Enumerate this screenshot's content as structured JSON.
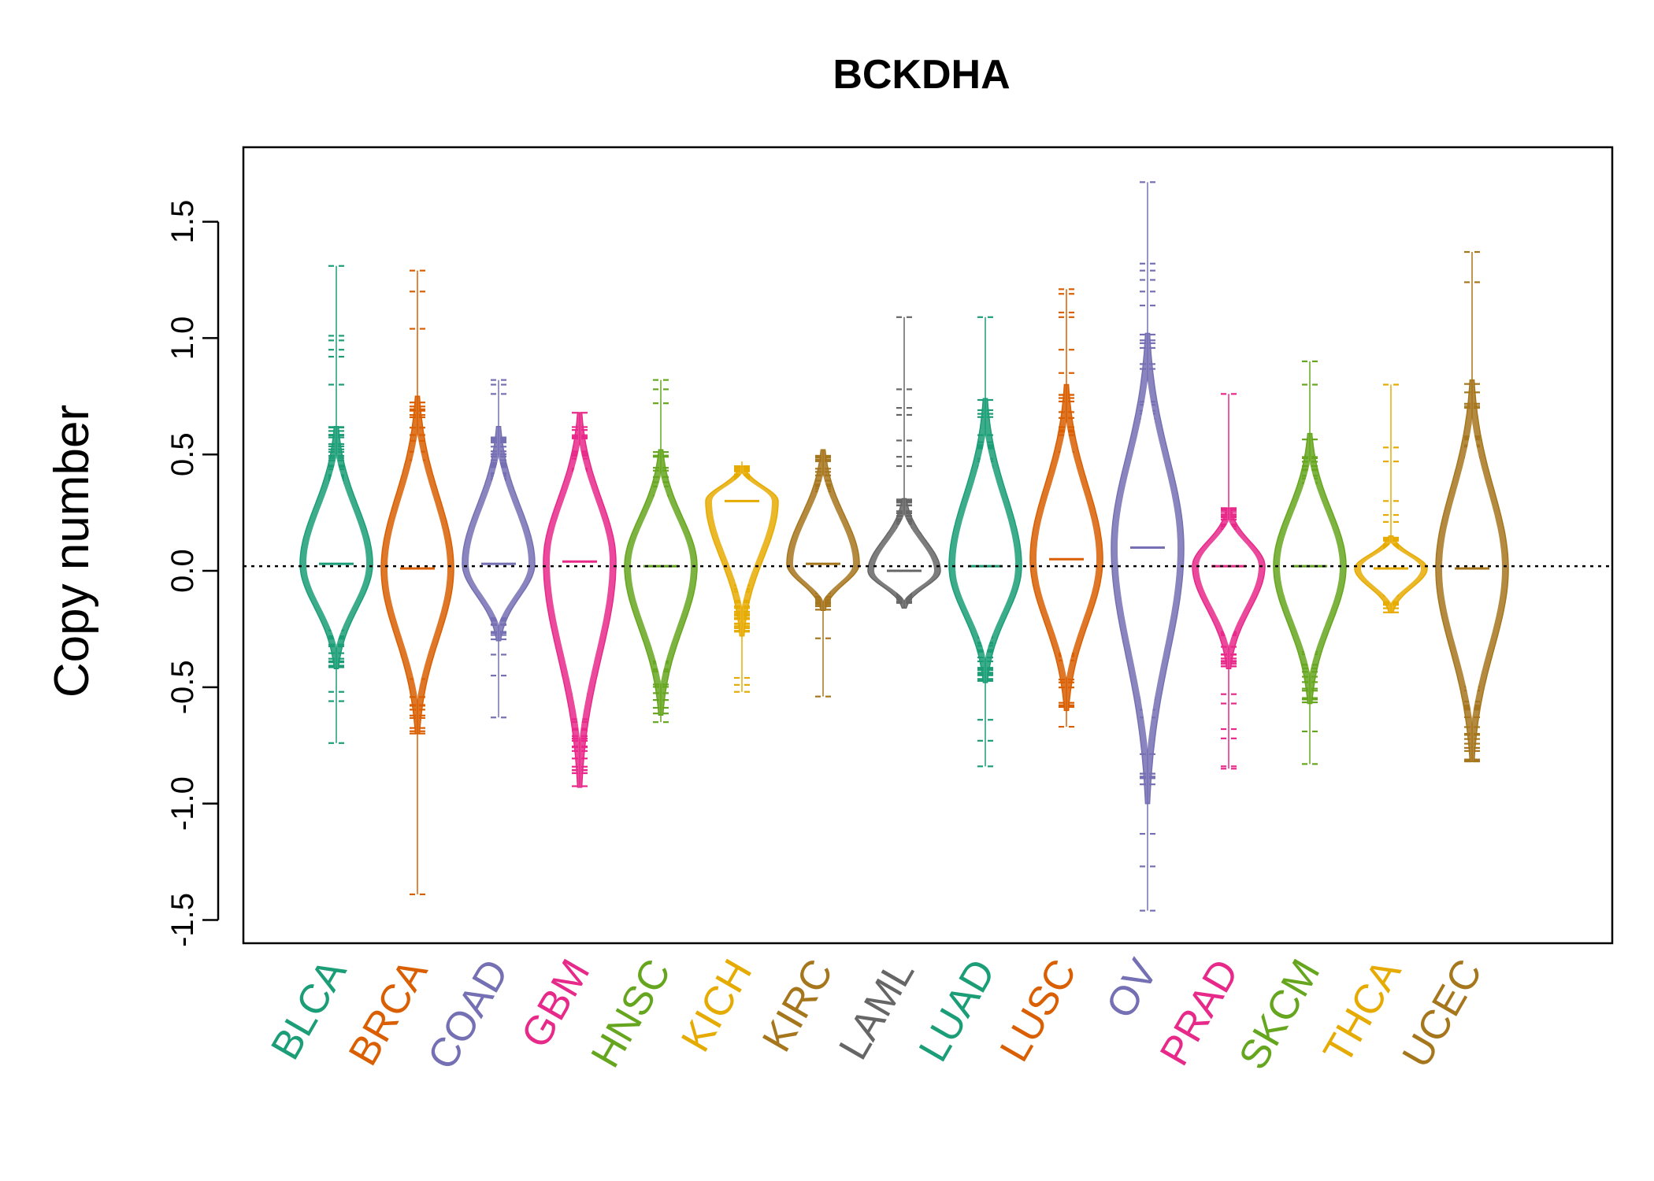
{
  "chart_data": {
    "type": "beanplot",
    "title": "BCKDHA",
    "xlabel": "",
    "ylabel": "Copy number",
    "ylim": [
      -1.6,
      1.82
    ],
    "yticks": [
      -1.5,
      -1.0,
      -0.5,
      0.0,
      0.5,
      1.0,
      1.5
    ],
    "ytick_labels": [
      "-1.5",
      "-1.0",
      "-0.5",
      "0.0",
      "0.5",
      "1.0",
      "1.5"
    ],
    "reference_line": 0.02,
    "grid": false,
    "categories": [
      "BLCA",
      "BRCA",
      "COAD",
      "GBM",
      "HNSC",
      "KICH",
      "KIRC",
      "LAML",
      "LUAD",
      "LUSC",
      "OV",
      "PRAD",
      "SKCM",
      "THCA",
      "UCEC"
    ],
    "colors": [
      "#1B9E77",
      "#D95F02",
      "#7570B3",
      "#E7298A",
      "#66A61E",
      "#E6AB02",
      "#A6761D",
      "#666666",
      "#1B9E77",
      "#D95F02",
      "#7570B3",
      "#E7298A",
      "#66A61E",
      "#E6AB02",
      "#A6761D"
    ],
    "series": [
      {
        "name": "BLCA",
        "median": 0.03,
        "min": -0.74,
        "max": 1.31,
        "dense_low": -0.42,
        "dense_high": 0.62,
        "outliers": [
          1.31,
          1.01,
          0.99,
          0.95,
          0.92,
          0.8,
          -0.52,
          -0.56,
          -0.74
        ]
      },
      {
        "name": "BRCA",
        "median": 0.01,
        "min": -1.39,
        "max": 1.29,
        "dense_low": -0.7,
        "dense_high": 0.75,
        "outliers": [
          1.29,
          1.2,
          1.04,
          -1.39
        ]
      },
      {
        "name": "COAD",
        "median": 0.03,
        "min": -0.63,
        "max": 0.82,
        "dense_low": -0.3,
        "dense_high": 0.62,
        "outliers": [
          0.82,
          0.8,
          0.76,
          -0.36,
          -0.45,
          -0.63
        ]
      },
      {
        "name": "GBM",
        "median": 0.04,
        "min": -0.93,
        "max": 0.68,
        "dense_low": -0.93,
        "dense_high": 0.68,
        "outliers": []
      },
      {
        "name": "HNSC",
        "median": 0.02,
        "min": -0.65,
        "max": 0.82,
        "dense_low": -0.62,
        "dense_high": 0.52,
        "outliers": [
          0.82,
          0.78,
          0.72,
          -0.65
        ]
      },
      {
        "name": "KICH",
        "median": 0.3,
        "min": -0.52,
        "max": 0.47,
        "dense_low": -0.28,
        "dense_high": 0.45,
        "outliers": [
          -0.46,
          -0.49,
          -0.52
        ]
      },
      {
        "name": "KIRC",
        "median": 0.03,
        "min": -0.54,
        "max": 0.52,
        "dense_low": -0.17,
        "dense_high": 0.52,
        "outliers": [
          -0.29,
          -0.54
        ]
      },
      {
        "name": "LAML",
        "median": 0.0,
        "min": -0.16,
        "max": 1.09,
        "dense_low": -0.16,
        "dense_high": 0.31,
        "outliers": [
          1.09,
          0.78,
          0.7,
          0.67,
          0.56,
          0.49,
          0.45
        ]
      },
      {
        "name": "LUAD",
        "median": 0.02,
        "min": -0.84,
        "max": 1.09,
        "dense_low": -0.48,
        "dense_high": 0.74,
        "outliers": [
          1.09,
          -0.64,
          -0.73,
          -0.84
        ]
      },
      {
        "name": "LUSC",
        "median": 0.05,
        "min": -0.67,
        "max": 1.21,
        "dense_low": -0.6,
        "dense_high": 0.8,
        "outliers": [
          1.21,
          1.19,
          1.11,
          1.09,
          0.95,
          0.85,
          -0.67
        ]
      },
      {
        "name": "OV",
        "median": 0.1,
        "min": -1.46,
        "max": 1.67,
        "dense_low": -1.0,
        "dense_high": 1.02,
        "outliers": [
          1.67,
          1.32,
          1.29,
          1.25,
          1.2,
          1.14,
          -1.13,
          -1.27,
          -1.46
        ]
      },
      {
        "name": "PRAD",
        "median": 0.02,
        "min": -0.85,
        "max": 0.76,
        "dense_low": -0.42,
        "dense_high": 0.27,
        "outliers": [
          0.76,
          -0.53,
          -0.57,
          -0.68,
          -0.72,
          -0.84,
          -0.85
        ]
      },
      {
        "name": "SKCM",
        "median": 0.02,
        "min": -0.83,
        "max": 0.9,
        "dense_low": -0.57,
        "dense_high": 0.59,
        "outliers": [
          0.9,
          0.8,
          -0.69,
          -0.83
        ]
      },
      {
        "name": "THCA",
        "median": 0.01,
        "min": -0.18,
        "max": 0.8,
        "dense_low": -0.18,
        "dense_high": 0.15,
        "outliers": [
          0.8,
          0.53,
          0.47,
          0.3,
          0.24,
          0.21
        ]
      },
      {
        "name": "UCEC",
        "median": 0.01,
        "min": -0.82,
        "max": 1.37,
        "dense_low": -0.82,
        "dense_high": 0.82,
        "outliers": [
          1.37,
          1.24
        ]
      }
    ]
  }
}
